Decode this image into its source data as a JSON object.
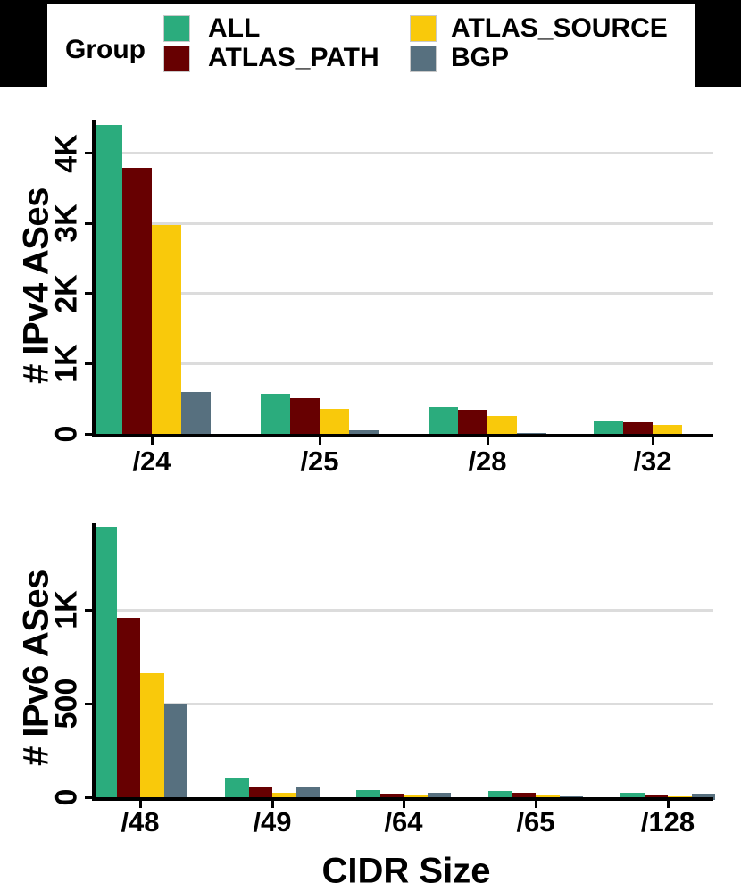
{
  "legend": {
    "title": "Group",
    "items": [
      {
        "label": "ALL",
        "color": "#2bac7d"
      },
      {
        "label": "ATLAS_PATH",
        "color": "#670001"
      },
      {
        "label": "ATLAS_SOURCE",
        "color": "#f9c90b"
      },
      {
        "label": "BGP",
        "color": "#57707f"
      }
    ]
  },
  "colors": {
    "background": "#ffffff",
    "frame": "#000000",
    "grid": "#dcdcdc",
    "axis": "#000000",
    "text": "#000000"
  },
  "chart_data": [
    {
      "type": "bar",
      "title": "",
      "xlabel": "",
      "ylabel": "# IPv4 ASes",
      "categories": [
        "/24",
        "/25",
        "/28",
        "/32"
      ],
      "yticks": [
        {
          "label": "0",
          "value": 0
        },
        {
          "label": "1K",
          "value": 1000
        },
        {
          "label": "2K",
          "value": 2000
        },
        {
          "label": "3K",
          "value": 3000
        },
        {
          "label": "4K",
          "value": 4000
        }
      ],
      "ylim": [
        0,
        4480
      ],
      "grid": true,
      "legend_position": "top",
      "series": [
        {
          "name": "ALL",
          "values": [
            4400,
            570,
            380,
            190
          ]
        },
        {
          "name": "ATLAS_PATH",
          "values": [
            3790,
            510,
            345,
            165
          ]
        },
        {
          "name": "ATLAS_SOURCE",
          "values": [
            2975,
            355,
            255,
            125
          ]
        },
        {
          "name": "BGP",
          "values": [
            595,
            45,
            12,
            3
          ]
        }
      ]
    },
    {
      "type": "bar",
      "title": "",
      "xlabel": "CIDR Size",
      "ylabel": "# IPv6 ASes",
      "categories": [
        "/48",
        "/49",
        "/64",
        "/65",
        "/128"
      ],
      "yticks": [
        {
          "label": "0",
          "value": 0
        },
        {
          "label": "500",
          "value": 500
        },
        {
          "label": "1K",
          "value": 1000
        }
      ],
      "ylim": [
        0,
        1465
      ],
      "grid": true,
      "legend_position": "top",
      "series": [
        {
          "name": "ALL",
          "values": [
            1445,
            105,
            38,
            35,
            24
          ]
        },
        {
          "name": "ATLAS_PATH",
          "values": [
            960,
            52,
            19,
            24,
            10
          ]
        },
        {
          "name": "ATLAS_SOURCE",
          "values": [
            665,
            26,
            10,
            10,
            5
          ]
        },
        {
          "name": "BGP",
          "values": [
            498,
            55,
            24,
            7,
            19
          ]
        }
      ]
    }
  ]
}
